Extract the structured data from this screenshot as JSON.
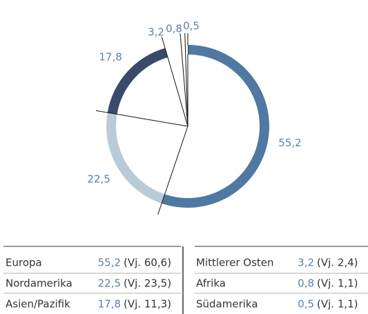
{
  "chart_data": {
    "type": "pie",
    "categories": [
      "Europa",
      "Nordamerika",
      "Asien/Pazifik",
      "Mittlerer Osten",
      "Afrika",
      "Südamerika"
    ],
    "values": [
      55.2,
      22.5,
      17.8,
      3.2,
      0.8,
      0.5
    ],
    "value_labels": [
      "55,2",
      "22,5",
      "17,8",
      "3,2",
      "0,8",
      "0,5"
    ],
    "colors": [
      "#4f78a2",
      "#b9cbd7",
      "#3a4a6b",
      "#ffffff",
      "#ffffff",
      "#ffffff"
    ]
  },
  "table": {
    "previous": [
      "(Vj. 60,6)",
      "(Vj. 23,5)",
      "(Vj. 11,3)",
      "(Vj. 2,4)",
      "(Vj. 1,1)",
      "(Vj. 1,1)"
    ]
  }
}
